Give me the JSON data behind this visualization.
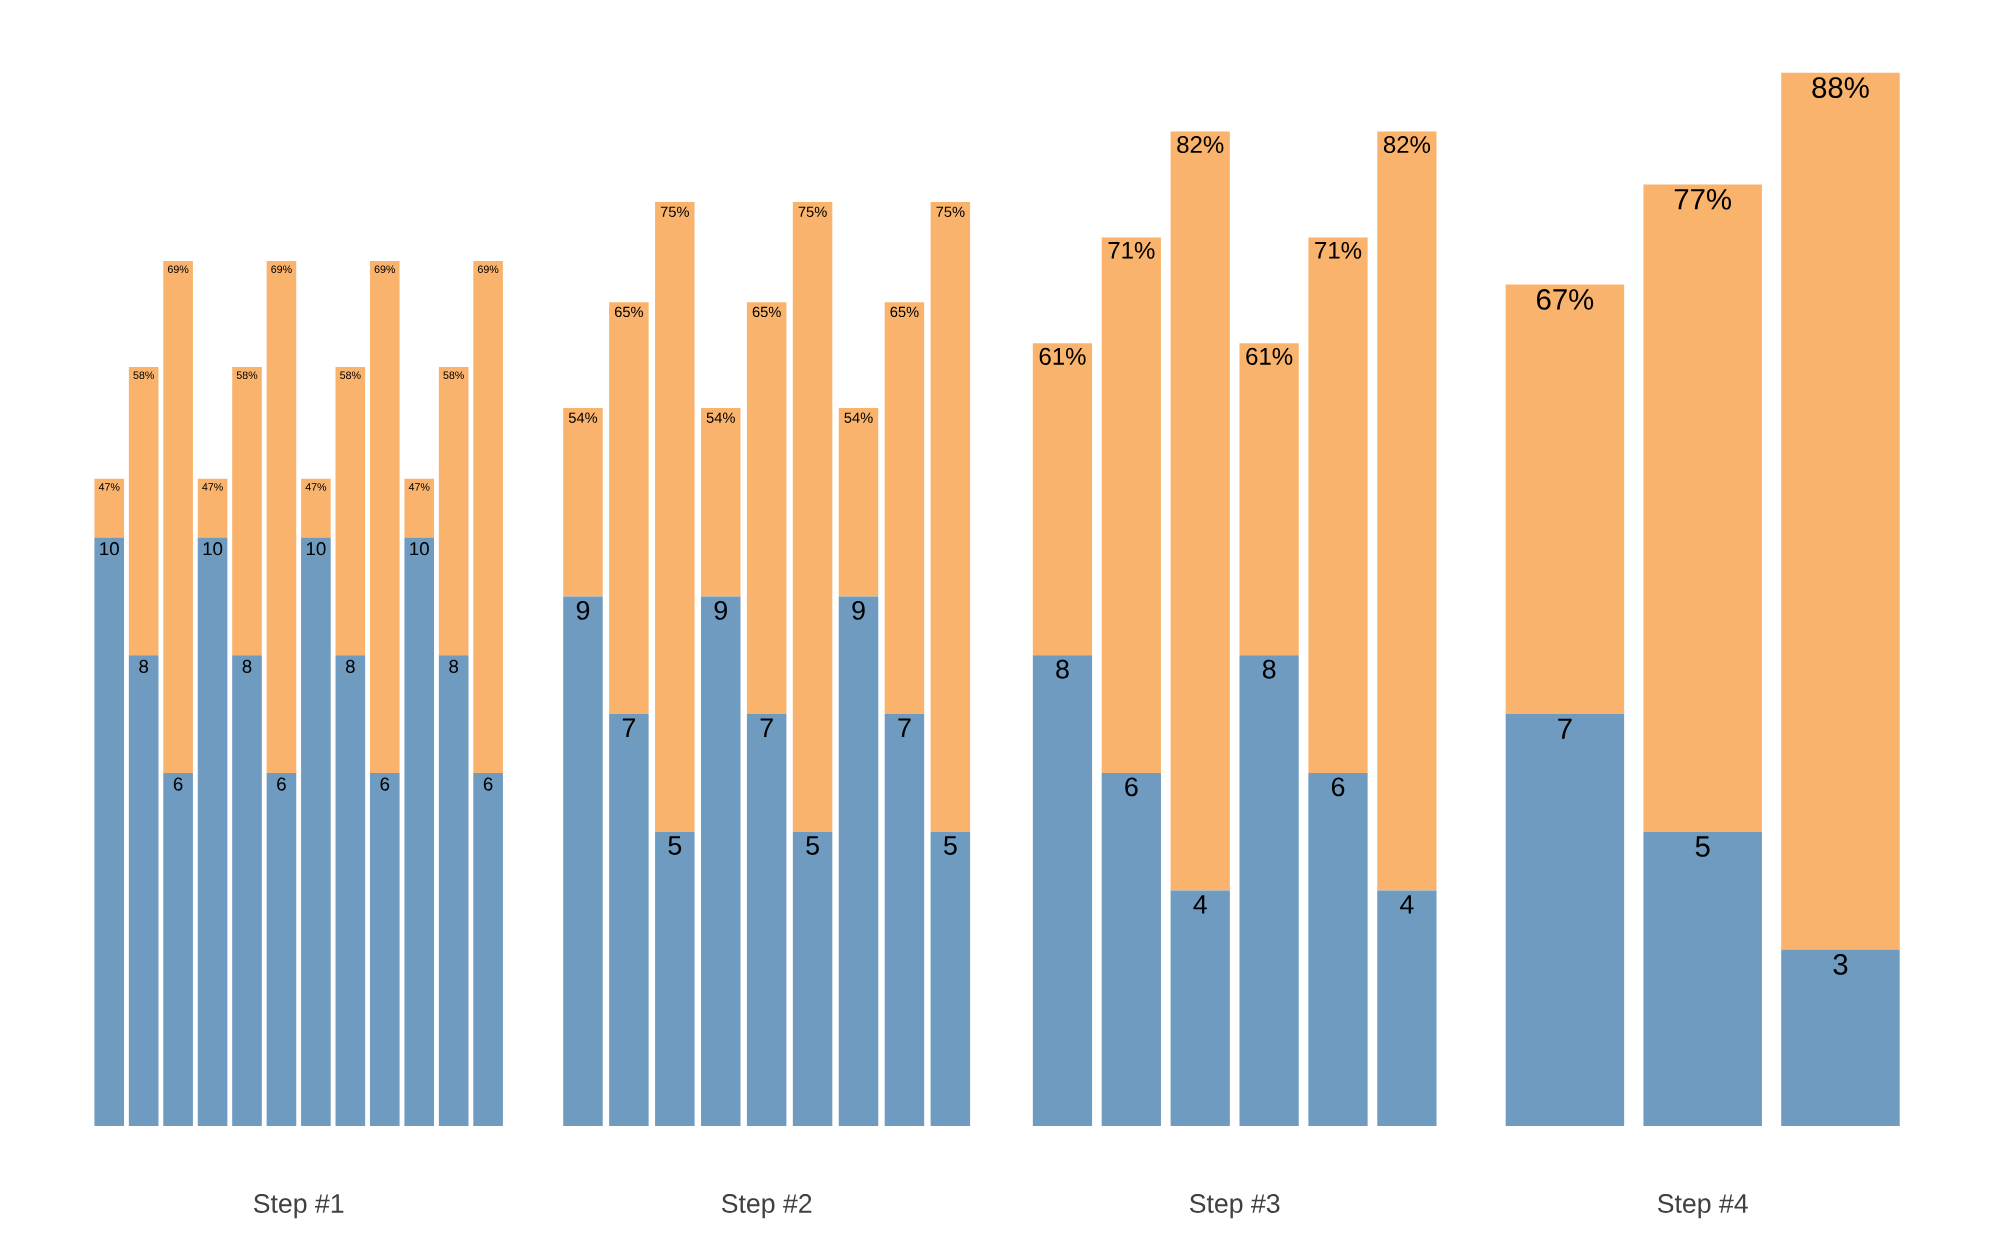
{
  "chart_data": [
    {
      "type": "bar",
      "stacked": true,
      "tick_labels": false,
      "xlabel": "Step #1",
      "categories": [
        null,
        null,
        null,
        null,
        null,
        null,
        null,
        null,
        null,
        null,
        null,
        null
      ],
      "series": [
        {
          "color": "#6e9bbf",
          "values": [
            10,
            8,
            6,
            10,
            8,
            6,
            10,
            8,
            6,
            10,
            8,
            6
          ],
          "value_labels": [
            "10",
            "8",
            "6",
            "10",
            "8",
            "6",
            "10",
            "8",
            "6",
            "10",
            "8",
            "6"
          ]
        },
        {
          "color": "#f9b36d",
          "values": [
            1.0,
            4.9,
            8.7,
            1.0,
            4.9,
            8.7,
            1.0,
            4.9,
            8.7,
            1.0,
            4.9,
            8.7
          ]
        }
      ],
      "annotations": [
        "47%",
        "58%",
        "69%",
        "47%",
        "58%",
        "69%",
        "47%",
        "58%",
        "69%",
        "47%",
        "58%",
        "69%"
      ]
    },
    {
      "type": "bar",
      "stacked": true,
      "tick_labels": false,
      "xlabel": "Step #2",
      "categories": [
        null,
        null,
        null,
        null,
        null,
        null,
        null,
        null,
        null
      ],
      "series": [
        {
          "color": "#6e9bbf",
          "values": [
            9,
            7,
            5,
            9,
            7,
            5,
            9,
            7,
            5
          ],
          "value_labels": [
            "9",
            "7",
            "5",
            "9",
            "7",
            "5",
            "9",
            "7",
            "5"
          ]
        },
        {
          "color": "#f9b36d",
          "values": [
            3.2,
            7.0,
            10.7,
            3.2,
            7.0,
            10.7,
            3.2,
            7.0,
            10.7
          ]
        }
      ],
      "annotations": [
        "54%",
        "65%",
        "75%",
        "54%",
        "65%",
        "75%",
        "54%",
        "65%",
        "75%"
      ]
    },
    {
      "type": "bar",
      "stacked": true,
      "tick_labels": false,
      "xlabel": "Step #3",
      "categories": [
        null,
        null,
        null,
        null,
        null,
        null
      ],
      "series": [
        {
          "color": "#6e9bbf",
          "values": [
            8,
            6,
            4,
            8,
            6,
            4
          ],
          "value_labels": [
            "8",
            "6",
            "4",
            "8",
            "6",
            "4"
          ]
        },
        {
          "color": "#f9b36d",
          "values": [
            5.3,
            9.1,
            12.9,
            5.3,
            9.1,
            12.9
          ]
        }
      ],
      "annotations": [
        "61%",
        "71%",
        "82%",
        "61%",
        "71%",
        "82%"
      ]
    },
    {
      "type": "bar",
      "stacked": true,
      "tick_labels": false,
      "xlabel": "Step #4",
      "categories": [
        null,
        null,
        null
      ],
      "series": [
        {
          "color": "#6e9bbf",
          "values": [
            7,
            5,
            3
          ],
          "value_labels": [
            "7",
            "5",
            "3"
          ]
        },
        {
          "color": "#f9b36d",
          "values": [
            7.3,
            11.0,
            14.9
          ]
        }
      ],
      "annotations": [
        "67%",
        "77%",
        "88%"
      ]
    }
  ]
}
